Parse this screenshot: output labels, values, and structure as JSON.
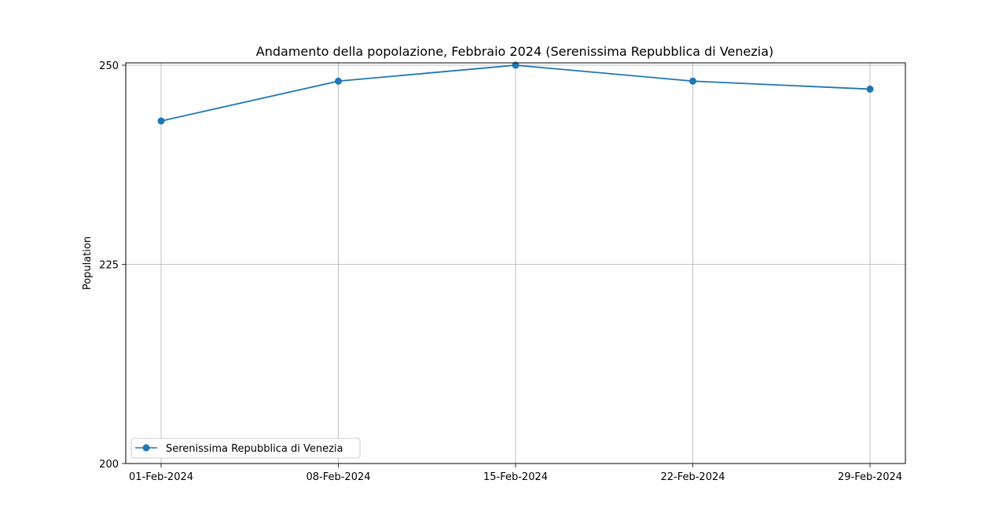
{
  "chart_data": {
    "type": "line",
    "title": "Andamento della popolazione, Febbraio 2024 (Serenissima Repubblica di Venezia)",
    "xlabel": "",
    "ylabel": "Population",
    "categories": [
      "01-Feb-2024",
      "08-Feb-2024",
      "15-Feb-2024",
      "22-Feb-2024",
      "29-Feb-2024"
    ],
    "series": [
      {
        "name": "Serenissima Repubblica di Venezia",
        "values": [
          243,
          248,
          250,
          248,
          247
        ],
        "color": "#1f77b4",
        "marker": "circle"
      }
    ],
    "ylim": [
      200,
      250
    ],
    "yticks": [
      "200",
      "225",
      "250"
    ],
    "grid": true,
    "legend_position": "lower-left"
  }
}
